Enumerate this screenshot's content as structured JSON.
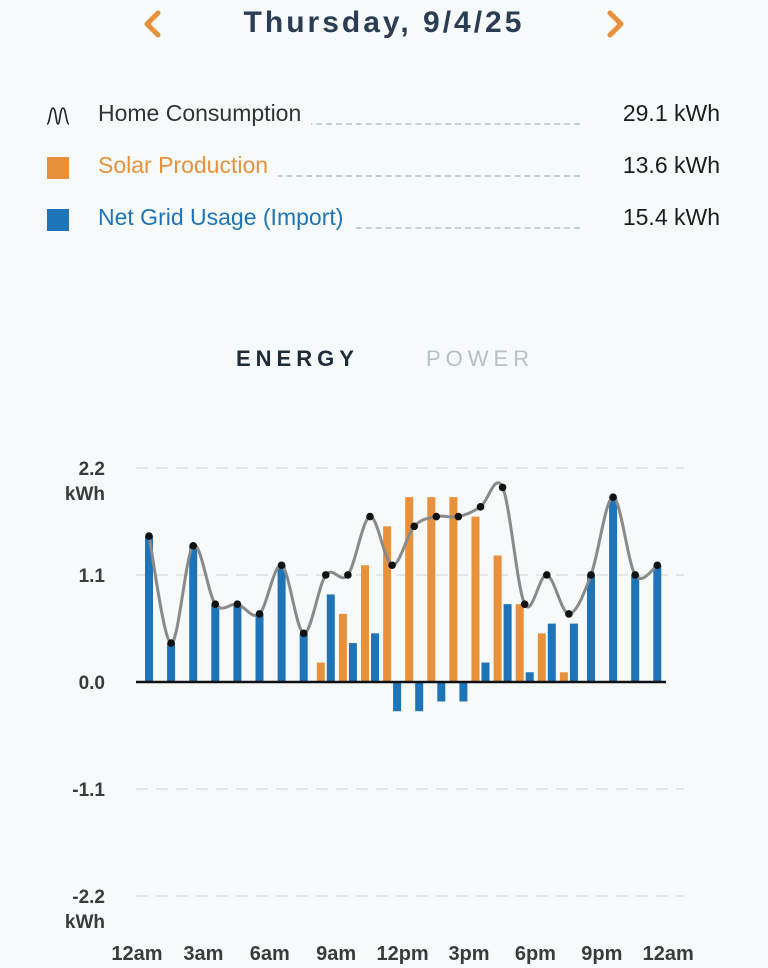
{
  "header": {
    "date": "Thursday, 9/4/25",
    "prev_icon": "chevron-left-icon",
    "next_icon": "chevron-right-icon",
    "accent_color": "#e8913a",
    "title_color": "#2b3d55"
  },
  "legend": [
    {
      "label": "Home Consumption",
      "value": "29.1 kWh",
      "color": "#333333",
      "icon": "consumption-wave-icon"
    },
    {
      "label": "Solar Production",
      "value": "13.6 kWh",
      "color": "#e8913a",
      "icon": "solar-square-icon"
    },
    {
      "label": "Net Grid Usage (Import)",
      "value": "15.4 kWh",
      "color": "#1f73b7",
      "icon": "grid-square-icon"
    }
  ],
  "tabs": {
    "active": "ENERGY",
    "inactive": "POWER"
  },
  "chart_data": {
    "type": "bar",
    "x_unit": "hour of day",
    "series": [
      {
        "name": "Home Consumption",
        "type": "line",
        "color": "#8a8a8a",
        "values": [
          1.5,
          0.4,
          1.4,
          0.8,
          0.8,
          0.7,
          1.2,
          0.5,
          1.1,
          1.1,
          1.7,
          1.2,
          1.6,
          1.7,
          1.7,
          1.8,
          2.0,
          0.8,
          1.1,
          0.7,
          1.1,
          1.9,
          1.1,
          1.2
        ]
      },
      {
        "name": "Solar Production",
        "type": "bar",
        "color": "#e8913a",
        "values": [
          0,
          0,
          0,
          0,
          0,
          0,
          0,
          0,
          0.2,
          0.7,
          1.2,
          1.6,
          1.9,
          1.9,
          1.9,
          1.7,
          1.3,
          0.8,
          0.5,
          0.1,
          0,
          0,
          0,
          0
        ]
      },
      {
        "name": "Net Grid Usage (Import)",
        "type": "bar",
        "color": "#1f73b7",
        "values": [
          1.5,
          0.4,
          1.4,
          0.8,
          0.8,
          0.7,
          1.2,
          0.5,
          0.9,
          0.4,
          0.5,
          -0.3,
          -0.3,
          -0.2,
          -0.2,
          0.2,
          0.8,
          0.1,
          0.6,
          0.6,
          1.1,
          1.9,
          1.1,
          1.2
        ]
      }
    ],
    "y_ticks": [
      "2.2",
      "1.1",
      "0.0",
      "-1.1",
      "-2.2"
    ],
    "y_tick_values": [
      2.2,
      1.1,
      0,
      -1.1,
      -2.2
    ],
    "ylabel": "kWh",
    "ylim": [
      -2.2,
      2.2
    ],
    "x_ticks": [
      "12am",
      "3am",
      "6am",
      "9am",
      "12pm",
      "3pm",
      "6pm",
      "9pm",
      "12am"
    ],
    "grid": true
  }
}
